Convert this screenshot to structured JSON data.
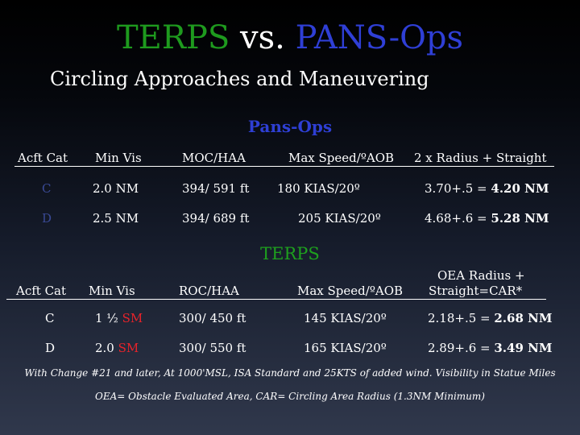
{
  "title": {
    "part1": "TERPS",
    "part2": " vs. ",
    "part3": "PANS-Ops"
  },
  "subtitle": "Circling Approaches and Maneuvering",
  "pans": {
    "heading": "Pans-Ops",
    "headers": [
      "Acft Cat",
      "Min Vis",
      "MOC/HAA",
      "Max Speed/ºAOB",
      "2 x Radius + Straight"
    ],
    "rows": [
      {
        "cat": "C",
        "vis": "2.0 NM",
        "moc": "394/ 591 ft",
        "speed": "180 KIAS/20º",
        "radius_pre": "3.70+.5 = ",
        "radius_bold": "4.20 NM"
      },
      {
        "cat": "D",
        "vis": "2.5 NM",
        "moc": "394/ 689 ft",
        "speed": "205 KIAS/20º",
        "radius_pre": "4.68+.6 = ",
        "radius_bold": "5.28 NM"
      }
    ]
  },
  "terps": {
    "heading": "TERPS",
    "headers": [
      "Acft Cat",
      "Min Vis",
      "ROC/HAA",
      "Max Speed/ºAOB",
      "OEA Radius +",
      "Straight=CAR*"
    ],
    "rows": [
      {
        "cat": "C",
        "vis_num": "1 ½",
        "vis_unit": "SM",
        "roc": "300/ 450 ft",
        "speed": "145 KIAS/20º",
        "radius_pre": "2.18+.5 = ",
        "radius_bold": "2.68 NM"
      },
      {
        "cat": "D",
        "vis_num": "2.0",
        "vis_unit": "SM",
        "roc": "300/ 550 ft",
        "speed": "165 KIAS/20º",
        "radius_pre": "2.89+.6 = ",
        "radius_bold": "3.49 NM"
      }
    ]
  },
  "footnote1": "With Change #21 and later, At 1000'MSL, ISA Standard and 25KTS of added wind. Visibility in Statue Miles",
  "footnote2": "OEA= Obstacle Evaluated Area, CAR= Circling Area Radius (1.3NM Minimum)",
  "colors": {
    "terps_green": "#1e9a1e",
    "pansops_blue": "#2f3fd6",
    "highlight_red": "#e8232a"
  }
}
